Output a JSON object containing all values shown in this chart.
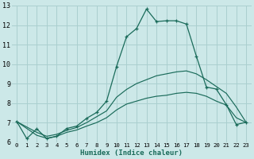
{
  "title": "",
  "xlabel": "Humidex (Indice chaleur)",
  "bg_color": "#cce8e8",
  "grid_color": "#aacfcf",
  "line_color": "#1a6b5a",
  "xlim": [
    -0.5,
    23.5
  ],
  "ylim": [
    6,
    13
  ],
  "xticks": [
    0,
    1,
    2,
    3,
    4,
    5,
    6,
    7,
    8,
    9,
    10,
    11,
    12,
    13,
    14,
    15,
    16,
    17,
    18,
    19,
    20,
    21,
    22,
    23
  ],
  "yticks": [
    6,
    7,
    8,
    9,
    10,
    11,
    12,
    13
  ],
  "line1_x": [
    0,
    1,
    2,
    3,
    4,
    5,
    6,
    7,
    8,
    9,
    10,
    11,
    12,
    13,
    14,
    15,
    16,
    17,
    18,
    19,
    20,
    21,
    22,
    23
  ],
  "line1_y": [
    7.05,
    6.18,
    6.68,
    6.18,
    6.3,
    6.7,
    6.82,
    7.22,
    7.52,
    8.1,
    9.88,
    11.4,
    11.82,
    12.82,
    12.18,
    12.22,
    12.22,
    12.05,
    10.4,
    8.82,
    8.72,
    7.92,
    6.9,
    7.02
  ],
  "line2_x": [
    0,
    2,
    3,
    4,
    5,
    6,
    7,
    8,
    9,
    10,
    11,
    12,
    13,
    14,
    15,
    16,
    17,
    18,
    19,
    20,
    21,
    22,
    23
  ],
  "line2_y": [
    7.05,
    6.5,
    6.3,
    6.4,
    6.6,
    6.75,
    7.0,
    7.3,
    7.6,
    8.3,
    8.7,
    9.0,
    9.2,
    9.4,
    9.5,
    9.6,
    9.65,
    9.5,
    9.2,
    8.85,
    8.5,
    7.8,
    7.0
  ],
  "line3_x": [
    0,
    2,
    3,
    4,
    5,
    6,
    7,
    8,
    9,
    10,
    11,
    12,
    13,
    14,
    15,
    16,
    17,
    18,
    19,
    20,
    21,
    22,
    23
  ],
  "line3_y": [
    7.05,
    6.35,
    6.2,
    6.3,
    6.5,
    6.62,
    6.82,
    7.0,
    7.25,
    7.65,
    7.95,
    8.1,
    8.25,
    8.35,
    8.4,
    8.5,
    8.55,
    8.5,
    8.35,
    8.1,
    7.9,
    7.25,
    7.0
  ]
}
